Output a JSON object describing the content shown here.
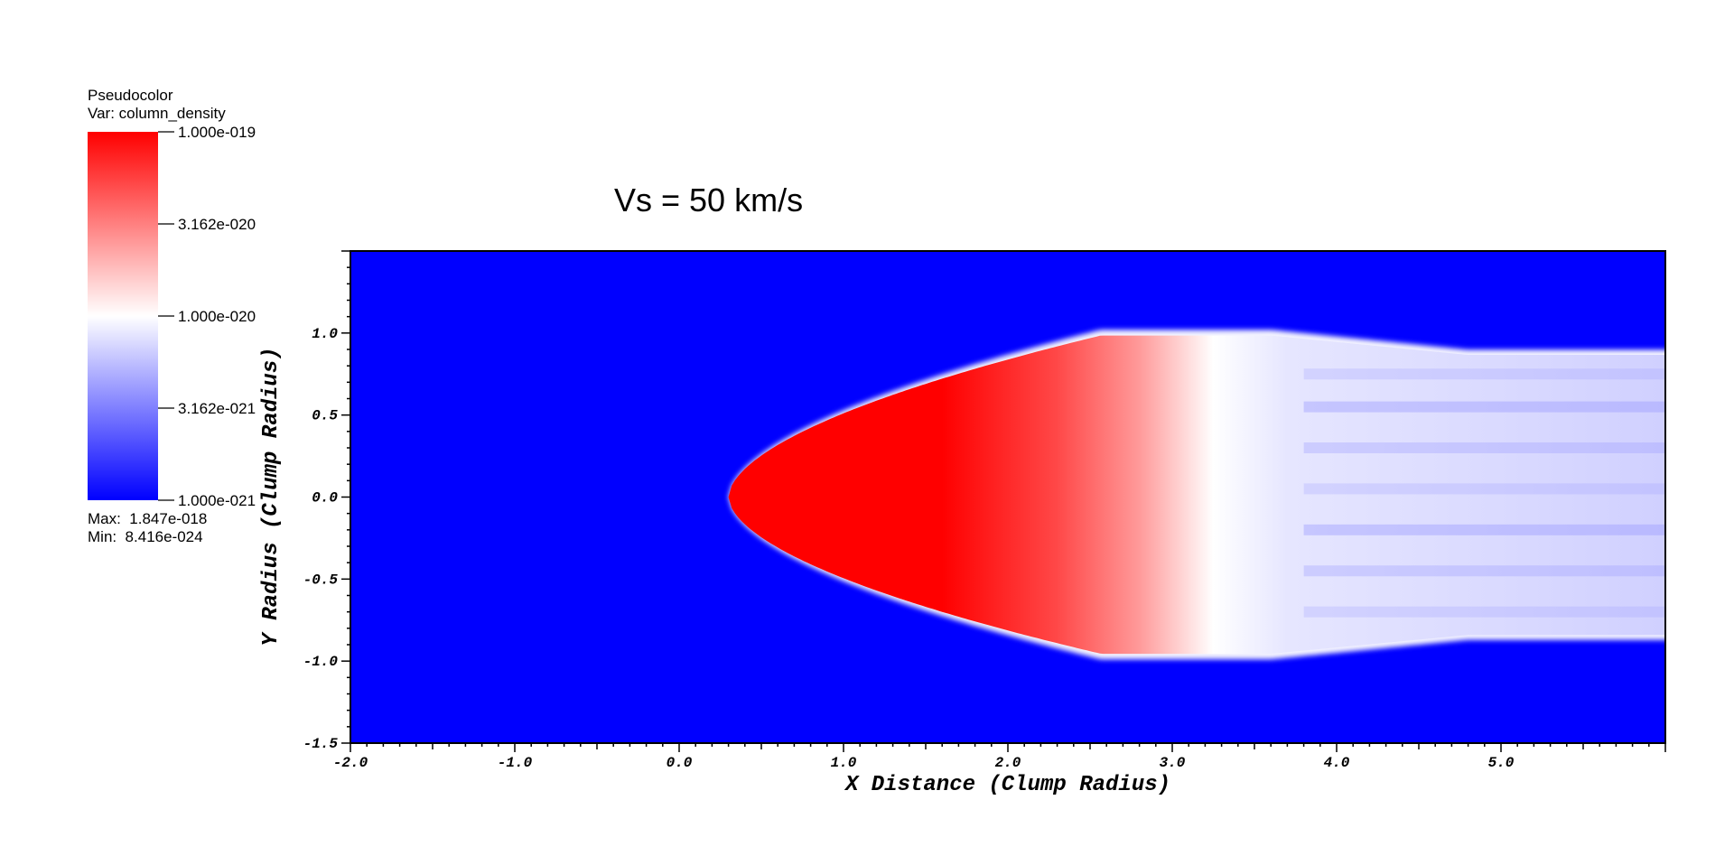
{
  "chart_data": {
    "type": "heatmap",
    "title": "Vs = 50 km/s",
    "xlabel": "X Distance (Clump Radius)",
    "ylabel": "Y Radius (Clump Radius)",
    "xlim": [
      -2.0,
      6.0
    ],
    "ylim": [
      -1.5,
      1.5
    ],
    "x_ticks": [
      -2.0,
      -1.0,
      0.0,
      1.0,
      2.0,
      3.0,
      4.0,
      5.0
    ],
    "x_tick_labels": [
      "-2.0",
      "-1.0",
      "0.0",
      "1.0",
      "2.0",
      "3.0",
      "4.0",
      "5.0"
    ],
    "y_ticks": [
      -1.5,
      -1.0,
      -0.5,
      0.0,
      0.5,
      1.0
    ],
    "y_tick_labels": [
      "-1.5",
      "-1.0",
      "-0.5",
      "0.0",
      "0.5",
      "1.0"
    ],
    "colorbar": {
      "title": "Pseudocolor",
      "variable_label": "Var: column_density",
      "scale": "log",
      "range": [
        1e-21,
        1e-19
      ],
      "tick_labels": [
        "1.000e-019",
        "3.162e-020",
        "1.000e-020",
        "3.162e-021",
        "1.000e-021"
      ],
      "max_label": "Max:  1.847e-018",
      "min_label": "Min:  8.416e-024",
      "colors": {
        "high": "#ff0000",
        "mid": "#ffffff",
        "low": "#0000ff"
      }
    },
    "structure": {
      "front_x": 0.3,
      "red_end_x": 3.0,
      "white_to_blue_x": 3.4,
      "half_width_max": 1.0,
      "tail_half_width": 0.88
    }
  }
}
